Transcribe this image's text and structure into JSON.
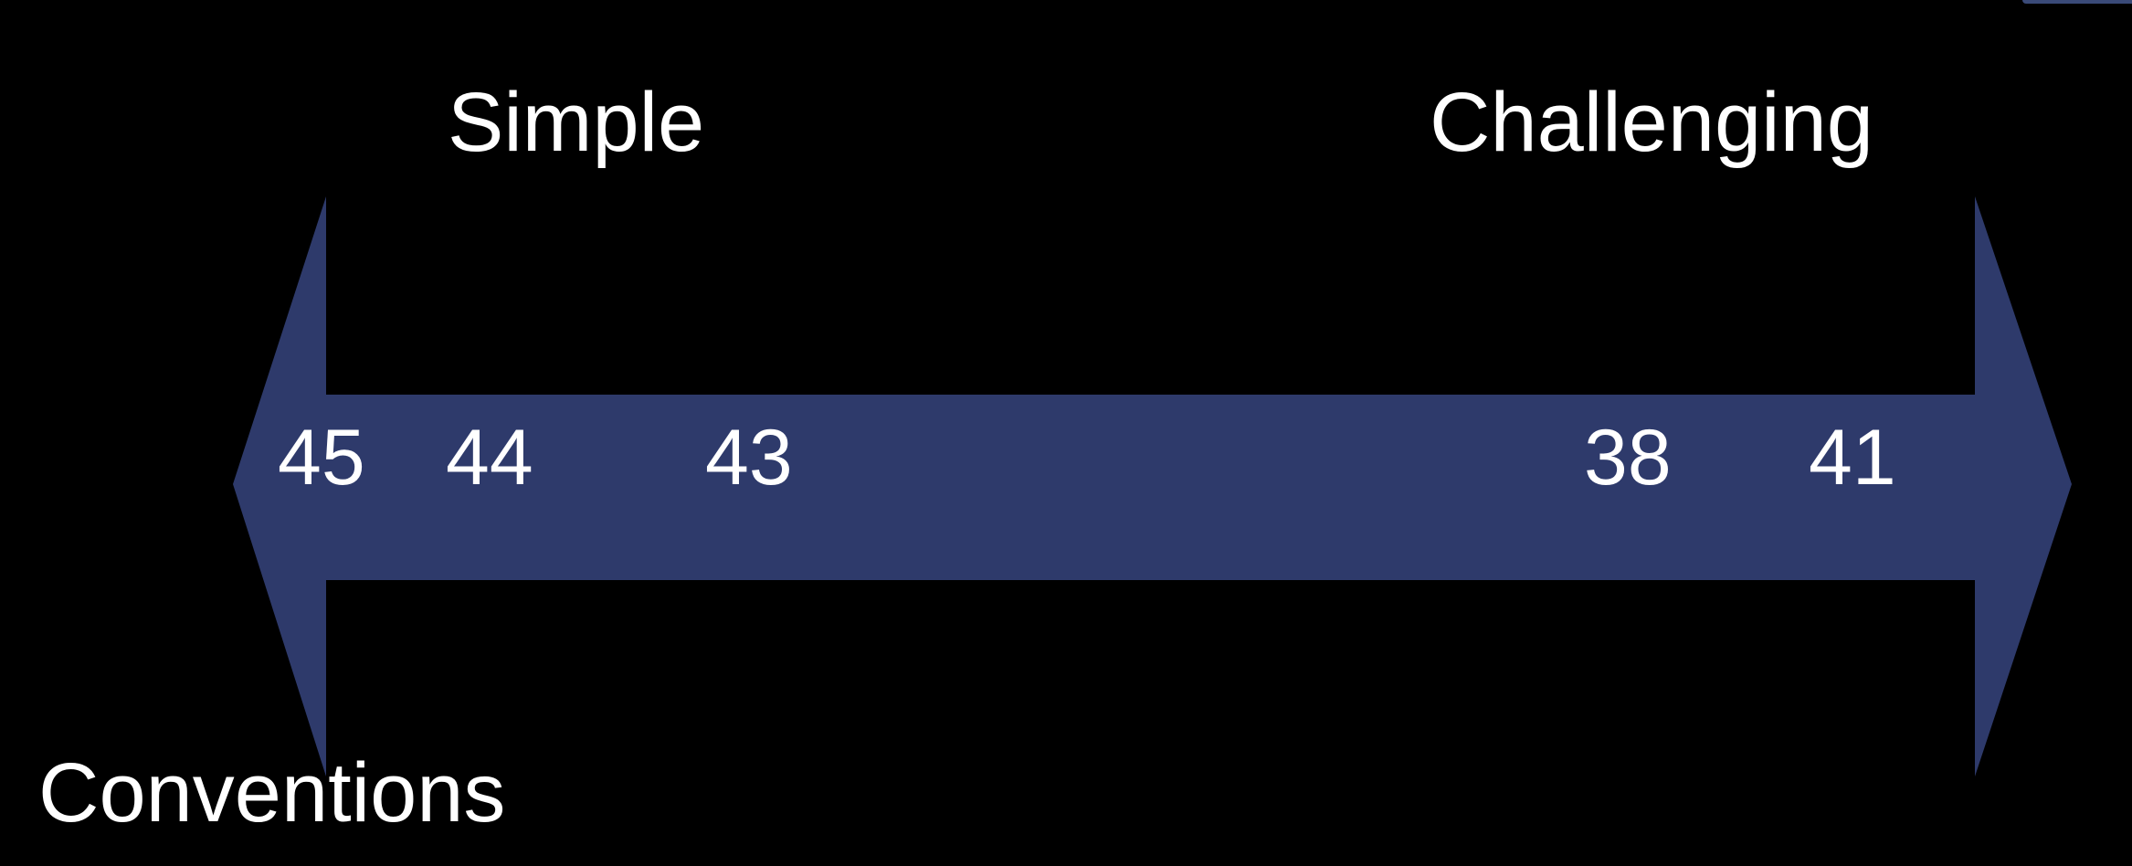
{
  "scale": {
    "left_pole": "Simple",
    "right_pole": "Challenging",
    "numbers": [
      "45",
      "44",
      "43",
      "38",
      "41"
    ]
  },
  "caption": "Conventions",
  "colors": {
    "background": "#000000",
    "arrow": "#2e3a6b",
    "text": "#ffffff"
  }
}
